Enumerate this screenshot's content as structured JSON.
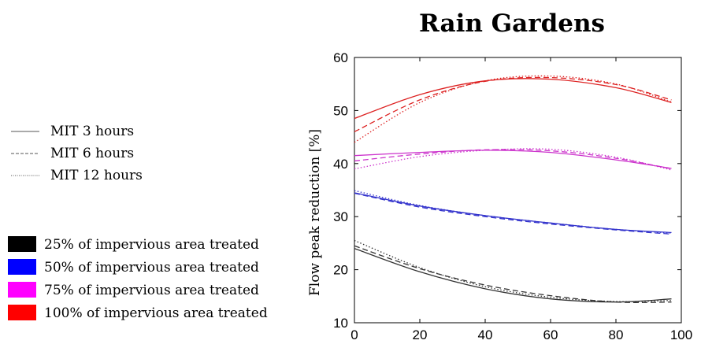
{
  "chart_data": {
    "type": "line",
    "title": "Rain Gardens",
    "xlabel": "",
    "ylabel": "Flow peak reduction [%]",
    "xlim": [
      0,
      100
    ],
    "ylim": [
      10,
      60
    ],
    "xticks": [
      0,
      20,
      40,
      60,
      80,
      100
    ],
    "yticks": [
      10,
      20,
      30,
      40,
      50,
      60
    ],
    "grid": false,
    "line_styles": [
      {
        "name": "MIT 3 hours",
        "dash": "solid"
      },
      {
        "name": "MIT 6 hours",
        "dash": "dashed"
      },
      {
        "name": "MIT 12 hours",
        "dash": "dotted"
      }
    ],
    "colors": [
      {
        "name": "25% of impervious area treated",
        "color": "#000000"
      },
      {
        "name": "50% of impervious area treated",
        "color": "#0000ff"
      },
      {
        "name": "75% of impervious area treated",
        "color": "#ff00ff"
      },
      {
        "name": "100% of impervious area treated",
        "color": "#ff0000"
      }
    ],
    "x": [
      0,
      20,
      40,
      60,
      80,
      97
    ],
    "series": [
      {
        "name": "25% of impervious area treated",
        "style": "MIT 3 hours",
        "color": "#333333",
        "values": [
          24.0,
          19.6,
          16.4,
          14.5,
          13.9,
          14.5
        ]
      },
      {
        "name": "25% of impervious area treated",
        "style": "MIT 6 hours",
        "color": "#333333",
        "values": [
          24.5,
          20.2,
          17.1,
          15.1,
          13.9,
          13.9
        ]
      },
      {
        "name": "25% of impervious area treated",
        "style": "MIT 12 hours",
        "color": "#333333",
        "values": [
          25.5,
          20.4,
          16.8,
          14.8,
          14.0,
          14.2
        ]
      },
      {
        "name": "50% of impervious area treated",
        "style": "MIT 3 hours",
        "color": "#3333cc",
        "values": [
          34.5,
          32.0,
          30.2,
          28.8,
          27.6,
          27.0
        ]
      },
      {
        "name": "50% of impervious area treated",
        "style": "MIT 6 hours",
        "color": "#3333cc",
        "values": [
          34.4,
          31.8,
          30.0,
          28.6,
          27.5,
          26.7
        ]
      },
      {
        "name": "50% of impervious area treated",
        "style": "MIT 12 hours",
        "color": "#3333cc",
        "values": [
          34.9,
          32.1,
          30.2,
          28.8,
          27.6,
          26.9
        ]
      },
      {
        "name": "75% of impervious area treated",
        "style": "MIT 3 hours",
        "color": "#cc33cc",
        "values": [
          41.5,
          42.1,
          42.5,
          42.1,
          40.7,
          39.1
        ]
      },
      {
        "name": "75% of impervious area treated",
        "style": "MIT 6 hours",
        "color": "#cc33cc",
        "values": [
          40.5,
          41.8,
          42.6,
          42.4,
          41.0,
          39.0
        ]
      },
      {
        "name": "75% of impervious area treated",
        "style": "MIT 12 hours",
        "color": "#cc33cc",
        "values": [
          39.0,
          41.3,
          42.5,
          42.7,
          41.2,
          38.8
        ]
      },
      {
        "name": "100% of impervious area treated",
        "style": "MIT 3 hours",
        "color": "#dd2222",
        "values": [
          48.5,
          53.0,
          55.6,
          55.9,
          54.3,
          51.5
        ]
      },
      {
        "name": "100% of impervious area treated",
        "style": "MIT 6 hours",
        "color": "#dd2222",
        "values": [
          46.0,
          52.0,
          55.5,
          56.2,
          54.9,
          52.0
        ]
      },
      {
        "name": "100% of impervious area treated",
        "style": "MIT 12 hours",
        "color": "#dd2222",
        "values": [
          44.0,
          51.5,
          55.6,
          56.5,
          55.0,
          51.6
        ]
      }
    ]
  }
}
